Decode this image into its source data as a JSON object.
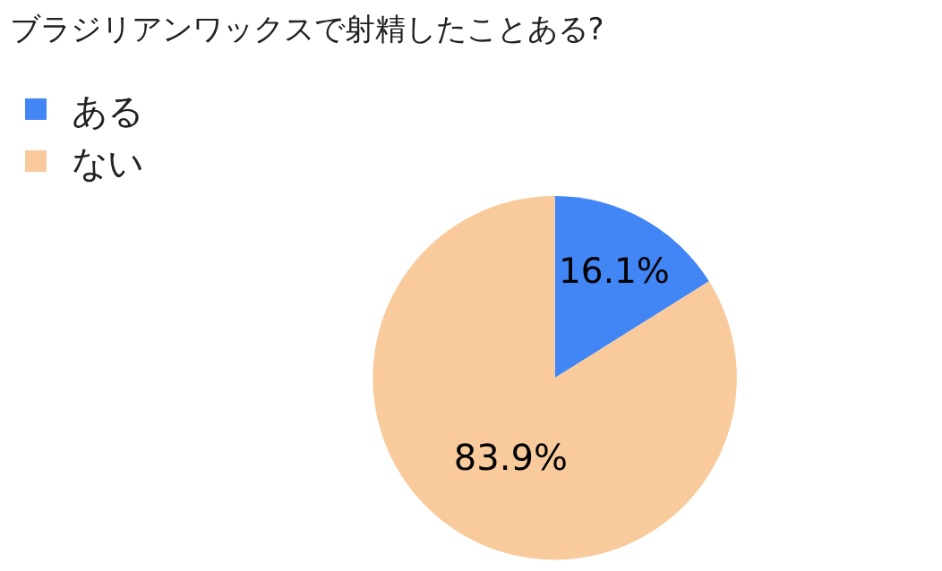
{
  "chart_data": {
    "type": "pie",
    "title": "ブラジリアンワックスで射精したことある?",
    "categories": [
      "ある",
      "ない"
    ],
    "values": [
      16.1,
      83.9
    ],
    "colors": [
      "#4285f4",
      "#f9cb9c"
    ],
    "value_labels": [
      "16.1%",
      "83.9%"
    ],
    "legend": "top left"
  }
}
